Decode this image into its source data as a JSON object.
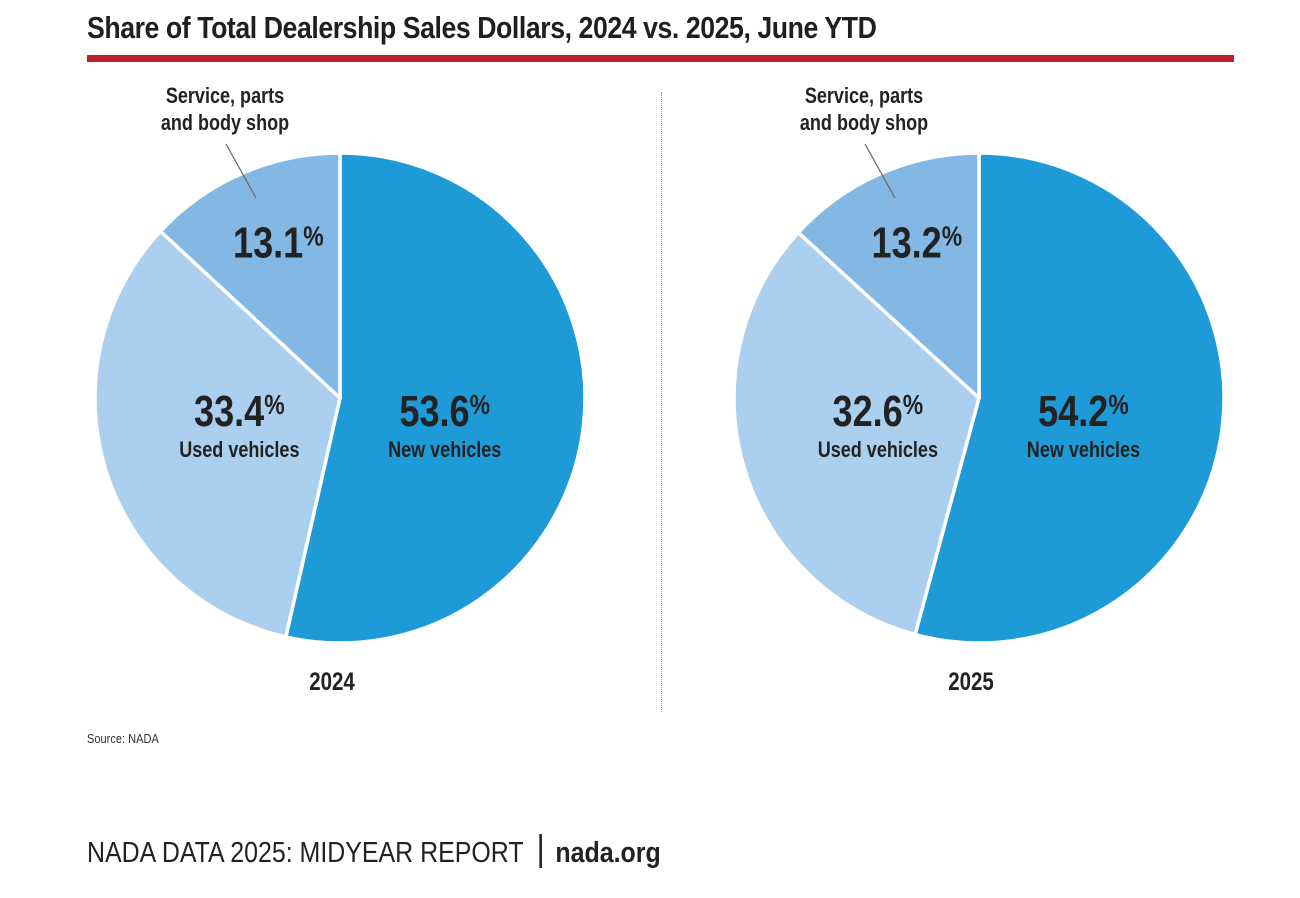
{
  "title": "Share of Total Dealership Sales Dollars, 2024 vs. 2025, June YTD",
  "colors": {
    "accent_rule": "#c0202e",
    "new_vehicles": "#1e9ad6",
    "used_vehicles": "#abcfee",
    "service": "#82b8e3",
    "text": "#222222"
  },
  "chart_data": [
    {
      "type": "pie",
      "year_label": "2024",
      "slices": [
        {
          "name": "New vehicles",
          "value": 53.6,
          "value_label": "53.6",
          "label": "New vehicles"
        },
        {
          "name": "Used vehicles",
          "value": 33.4,
          "value_label": "33.4",
          "label": "Used vehicles"
        },
        {
          "name": "Service, parts and body shop",
          "value": 13.1,
          "value_label": "13.1",
          "label_lines": [
            "Service, parts",
            "and body shop"
          ]
        }
      ],
      "percent_sign": "%"
    },
    {
      "type": "pie",
      "year_label": "2025",
      "slices": [
        {
          "name": "New vehicles",
          "value": 54.2,
          "value_label": "54.2",
          "label": "New vehicles"
        },
        {
          "name": "Used vehicles",
          "value": 32.6,
          "value_label": "32.6",
          "label": "Used vehicles"
        },
        {
          "name": "Service, parts and body shop",
          "value": 13.2,
          "value_label": "13.2",
          "label_lines": [
            "Service, parts",
            "and body shop"
          ]
        }
      ],
      "percent_sign": "%"
    }
  ],
  "source": "Source: NADA",
  "footer": {
    "report": "NADA DATA 2025: MIDYEAR REPORT",
    "site": "nada.org"
  }
}
